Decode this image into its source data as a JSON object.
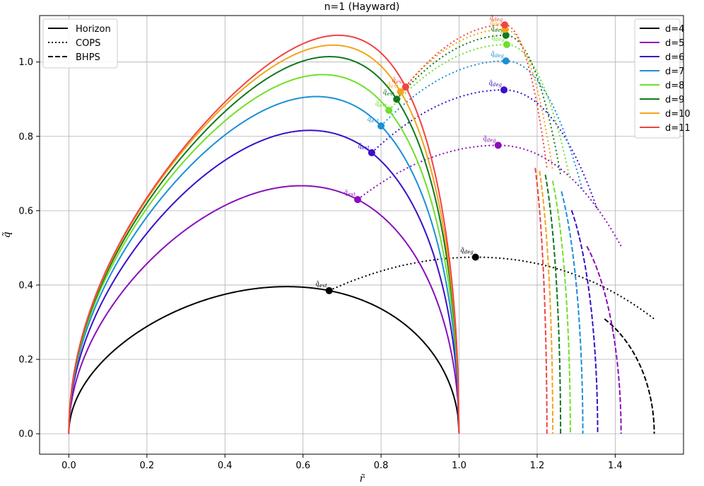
{
  "chart_data": {
    "type": "line",
    "title": "n=1 (Hayward)",
    "xlabel": "r̃",
    "ylabel": "q̃",
    "xlim": [
      -0.075,
      1.575
    ],
    "ylim": [
      -0.055,
      1.125
    ],
    "x_ticks": [
      0.0,
      0.2,
      0.4,
      0.6,
      0.8,
      1.0,
      1.2,
      1.4
    ],
    "x_tick_labels": [
      "0.0",
      "0.2",
      "0.4",
      "0.6",
      "0.8",
      "1.0",
      "1.2",
      "1.4"
    ],
    "y_ticks": [
      0.0,
      0.2,
      0.4,
      0.6,
      0.8,
      1.0
    ],
    "y_tick_labels": [
      "0.0",
      "0.2",
      "0.4",
      "0.6",
      "0.8",
      "1.0"
    ],
    "grid": true,
    "style_legend": {
      "placement": "top-left",
      "entries": [
        {
          "label": "Horizon",
          "style": "solid"
        },
        {
          "label": "COPS",
          "style": "dotted"
        },
        {
          "label": "BHPS",
          "style": "dashed"
        }
      ]
    },
    "series_legend": {
      "placement": "top-right"
    },
    "annotation_ext": "q̃ext",
    "annotation_deg": "q̃deg",
    "series": [
      {
        "name": "d=4",
        "color": "#000000",
        "ext": [
          0.667,
          0.385
        ],
        "deg": [
          1.042,
          0.475
        ],
        "r_bhps": 1.5
      },
      {
        "name": "d=5",
        "color": "#8a0eba",
        "ext": [
          0.74,
          0.63
        ],
        "deg": [
          1.1,
          0.776
        ],
        "r_bhps": 1.415
      },
      {
        "name": "d=6",
        "color": "#3a10c8",
        "ext": [
          0.776,
          0.756
        ],
        "deg": [
          1.115,
          0.925
        ],
        "r_bhps": 1.355
      },
      {
        "name": "d=7",
        "color": "#1b8fd8",
        "ext": [
          0.8,
          0.828
        ],
        "deg": [
          1.12,
          1.003
        ],
        "r_bhps": 1.317
      },
      {
        "name": "d=8",
        "color": "#6ee02a",
        "ext": [
          0.82,
          0.87
        ],
        "deg": [
          1.122,
          1.047
        ],
        "r_bhps": 1.285
      },
      {
        "name": "d=9",
        "color": "#10781e",
        "ext": [
          0.84,
          0.9
        ],
        "deg": [
          1.12,
          1.072
        ],
        "r_bhps": 1.26
      },
      {
        "name": "d=10",
        "color": "#f2a51a",
        "ext": [
          0.85,
          0.92
        ],
        "deg": [
          1.118,
          1.088
        ],
        "r_bhps": 1.24
      },
      {
        "name": "d=11",
        "color": "#f24343",
        "ext": [
          0.863,
          0.933
        ],
        "deg": [
          1.117,
          1.1
        ],
        "r_bhps": 1.225
      }
    ]
  }
}
